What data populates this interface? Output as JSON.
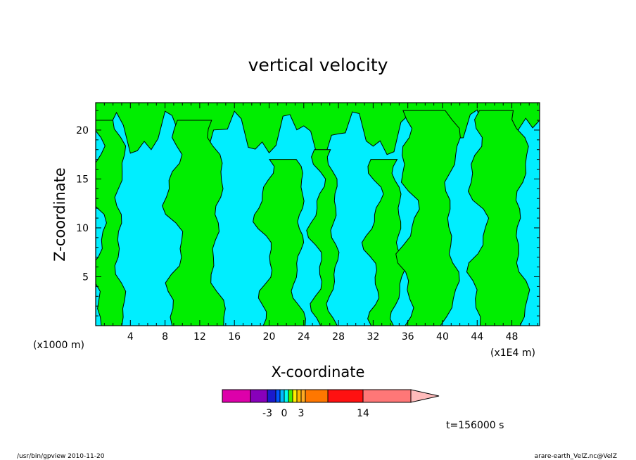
{
  "chart_data": {
    "type": "heatmap",
    "title": "vertical velocity",
    "xlabel": "X-coordinate",
    "ylabel": "Z-coordinate",
    "x_unit_left": "(x1000 m)",
    "x_unit_right": "(x1E4 m)",
    "xlim": [
      0,
      51.2
    ],
    "ylim": [
      0,
      22.8
    ],
    "x_ticks": [
      4,
      8,
      12,
      16,
      20,
      24,
      28,
      32,
      36,
      40,
      44,
      48
    ],
    "y_ticks": [
      5,
      10,
      15,
      20
    ],
    "time_label": "t=156000 s",
    "colorbar": {
      "colors": [
        "#dd00aa",
        "#8800bb",
        "#1a1acc",
        "#0055ff",
        "#00bbff",
        "#00ffee",
        "#44ee00",
        "#ffee00",
        "#ffbb00",
        "#ffaa22",
        "#ff7700",
        "#ff1111",
        "#ff7777",
        "#ffbbbb"
      ],
      "tick_labels": [
        "-3",
        "0",
        "3",
        "14"
      ],
      "extend": "max"
    },
    "field": {
      "dominant_levels": [
        {
          "color": "#00eeff",
          "meaning": "weak downdraft"
        },
        {
          "color": "#00ee00",
          "meaning": "weak updraft"
        }
      ],
      "updraft_columns": [
        {
          "x_center": 1.5,
          "width": 2.5,
          "top": 21
        },
        {
          "x_center": 11.5,
          "width": 5,
          "top": 21
        },
        {
          "x_center": 21.5,
          "width": 4,
          "top": 17
        },
        {
          "x_center": 26.5,
          "width": 2,
          "top": 18
        },
        {
          "x_center": 33.5,
          "width": 3,
          "top": 17
        },
        {
          "x_center": 38.5,
          "width": 5,
          "top": 22
        },
        {
          "x_center": 46.5,
          "width": 5,
          "top": 22
        }
      ]
    }
  },
  "footer": {
    "program": "/usr/bin/gpview   2010-11-20",
    "source": "arare-earth_VelZ.nc@VelZ"
  }
}
